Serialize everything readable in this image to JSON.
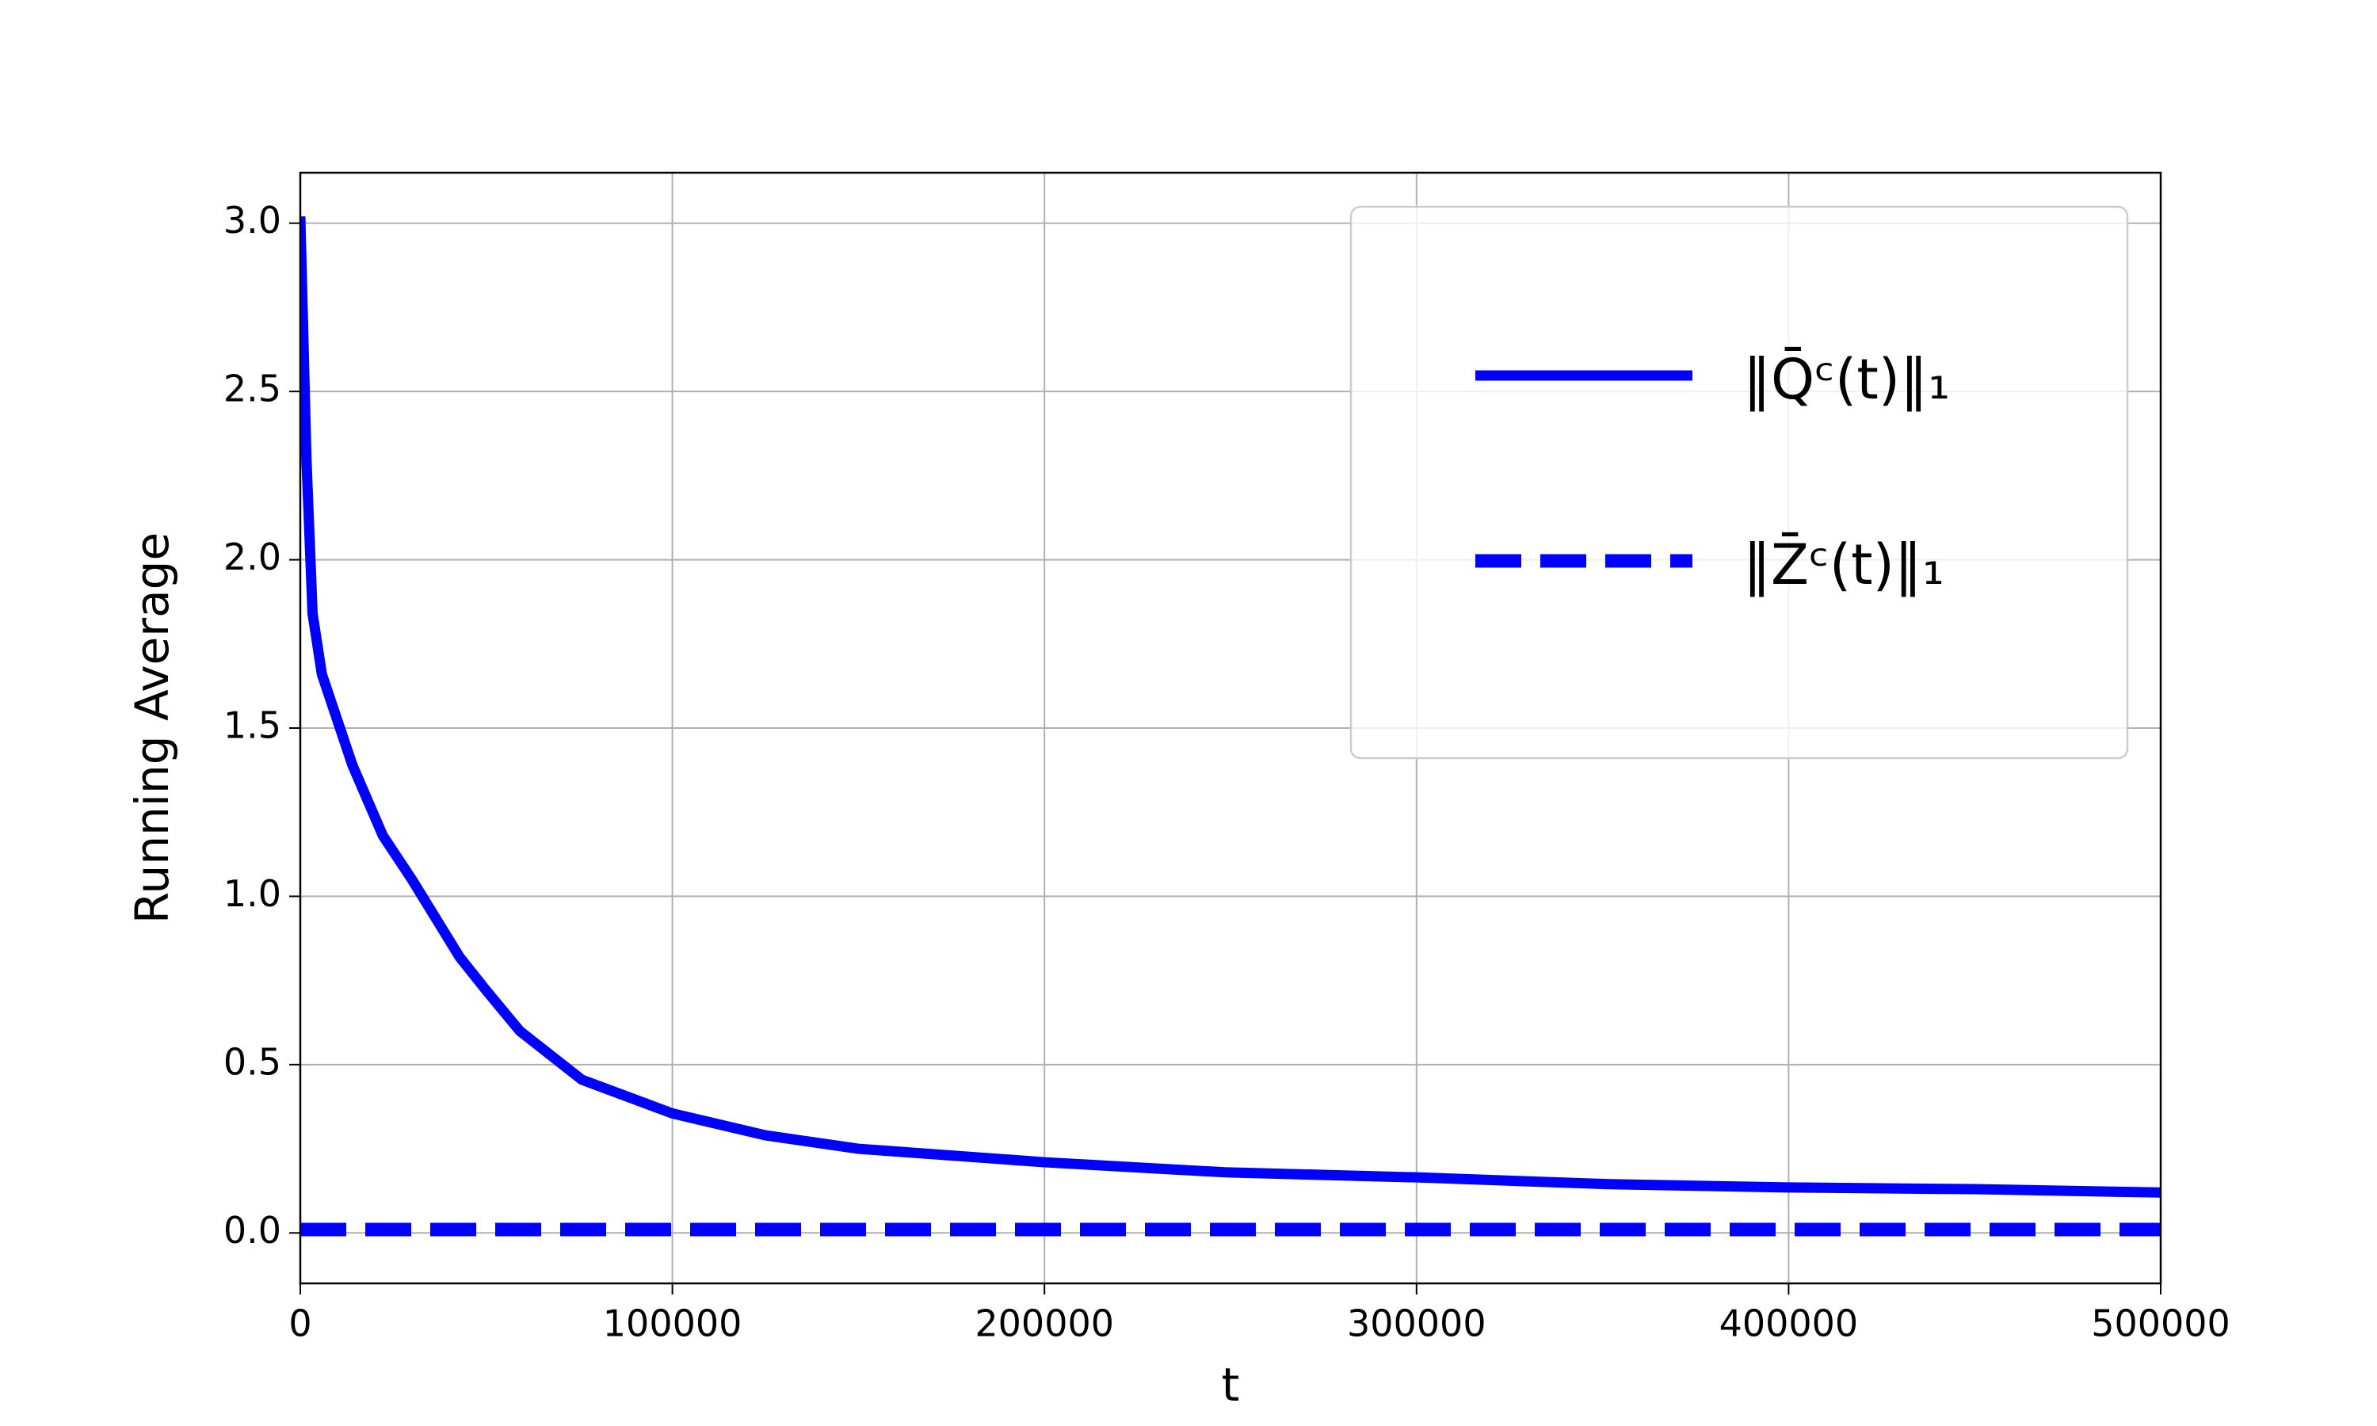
{
  "chart_data": {
    "type": "line",
    "xlabel": "t",
    "ylabel": "Running Average",
    "x": [
      0,
      1650,
      3300,
      5800,
      14000,
      22200,
      30000,
      42800,
      50000,
      59000,
      75700,
      100000,
      125000,
      150000,
      200000,
      248600,
      300000,
      351000,
      400000,
      450000,
      500000
    ],
    "series": [
      {
        "name": "‖Q̄ᶜ(t)‖₁",
        "color": "#0000ff",
        "style": "solid",
        "values": [
          3.02,
          2.3,
          1.84,
          1.66,
          1.39,
          1.18,
          1.05,
          0.82,
          0.72,
          0.6,
          0.455,
          0.355,
          0.29,
          0.25,
          0.21,
          0.18,
          0.165,
          0.145,
          0.135,
          0.13,
          0.12
        ]
      },
      {
        "name": "‖Z̄ᶜ(t)‖₁",
        "color": "#0000ff",
        "style": "dashed",
        "values": [
          0.01,
          0.01,
          0.01,
          0.01,
          0.01,
          0.01,
          0.01,
          0.01,
          0.01,
          0.01,
          0.01,
          0.01,
          0.01,
          0.01,
          0.01,
          0.01,
          0.01,
          0.01,
          0.01,
          0.01,
          0.01
        ]
      }
    ],
    "xlim": [
      0,
      500000
    ],
    "xticks": [
      0,
      100000,
      200000,
      300000,
      400000,
      500000
    ],
    "ylim": [
      -0.15,
      3.15
    ],
    "yticks": [
      {
        "value": 0,
        "label": "0.0"
      },
      0.5,
      {
        "value": 1,
        "label": "1.0"
      },
      1.5,
      {
        "value": 2,
        "label": "2.0"
      },
      2.5,
      {
        "value": 3,
        "label": "3.0"
      }
    ],
    "grid": true,
    "legend": "upper right"
  }
}
